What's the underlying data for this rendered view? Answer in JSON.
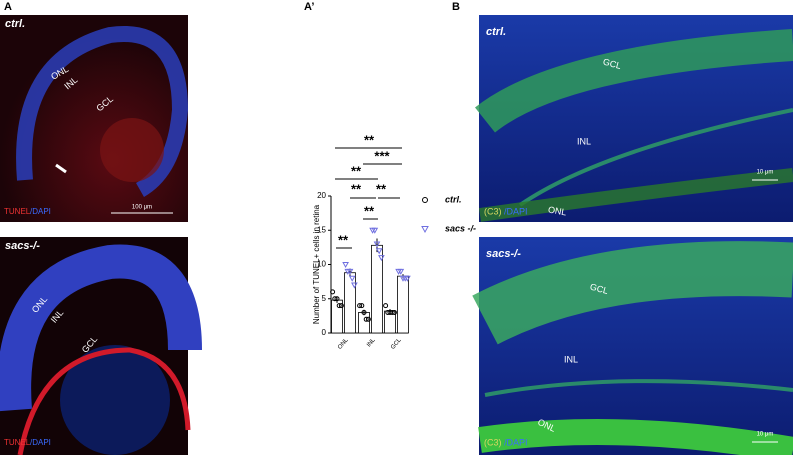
{
  "panels": {
    "a": "A",
    "a_prime": "A’",
    "b": "B"
  },
  "images": {
    "a_top": {
      "group": "ctrl.",
      "layers": [
        "ONL",
        "INL",
        "GCL"
      ],
      "stain": "TUNEL",
      "counterstain": "/DAPI",
      "scale": "100 μm"
    },
    "a_bottom": {
      "group": "sacs-/-",
      "layers": [
        "ONL",
        "INL",
        "GCL"
      ],
      "stain": "TUNEL",
      "counterstain": "/DAPI"
    },
    "b_top": {
      "group": "ctrl.",
      "layers": [
        "GCL",
        "INL",
        "ONL"
      ],
      "stain": "(C3)",
      "counterstain": "/DAPI",
      "scale": "10 μm"
    },
    "b_bottom": {
      "group": "sacs-/-",
      "layers": [
        "GCL",
        "INL",
        "ONL"
      ],
      "stain": "(C3)",
      "counterstain": "/DAPI",
      "scale": "10 μm"
    }
  },
  "chart_data": {
    "type": "bar",
    "y_label": "Number of TUNEL+ cells in retina",
    "categories": [
      "ONL",
      "INL",
      "GCL"
    ],
    "series": [
      {
        "name": "ctrl.",
        "color": "#000000",
        "values": [
          4.8,
          3.0,
          3.2
        ],
        "errors": [
          0.4,
          0.4,
          0.3
        ],
        "points": [
          [
            6,
            5,
            5,
            4,
            4
          ],
          [
            4,
            4,
            3,
            2,
            2
          ],
          [
            4,
            3,
            3,
            3,
            3
          ]
        ]
      },
      {
        "name": "sacs -/-",
        "color": "#6f6fe0",
        "values": [
          8.8,
          12.8,
          8.3
        ],
        "errors": [
          0.6,
          1.0,
          0.3
        ],
        "points": [
          [
            10,
            9,
            9,
            8,
            7
          ],
          [
            15,
            15,
            13,
            12,
            11
          ],
          [
            9,
            9,
            8,
            8,
            8
          ]
        ]
      }
    ],
    "ylim": [
      0,
      20
    ],
    "yticks": [
      0,
      5,
      10,
      15,
      20
    ],
    "annotations": [
      "**",
      "***",
      "**",
      "**",
      "**",
      "**",
      "**"
    ]
  }
}
